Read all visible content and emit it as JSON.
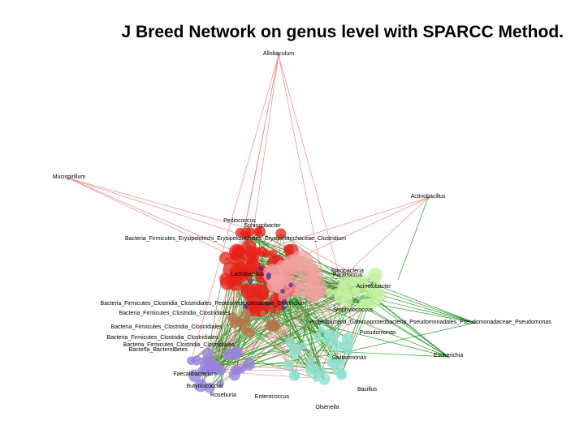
{
  "title": "J Breed Network on genus level with SPARCC Method.",
  "colors": {
    "positive_edge": "#f08a8a",
    "negative_edge": "#2a9a2a",
    "cluster_red": "#e8201a",
    "cluster_pink": "#f4a0a0",
    "cluster_lightgreen": "#c4f0a0",
    "cluster_teal": "#8fe0d0",
    "cluster_purple": "#9a82e0",
    "cluster_brown": "#b8764a"
  },
  "nodes": [
    {
      "label": "Allobaculum"
    },
    {
      "label": "Mucispirillum"
    },
    {
      "label": "Actinobacillus"
    },
    {
      "label": "Pediococcus"
    },
    {
      "label": "Sphingobacter"
    },
    {
      "label": "Bacteria_Firmicutes_Erysipelotrichi_Erysipelotrichales_Erysipelotrichaceae_Clostridium"
    },
    {
      "label": "Nitrobacteria"
    },
    {
      "label": "Paracoccus"
    },
    {
      "label": "Bacteria_Firmicutes_Clostridia_Clostridiales_Peptostreptococcaceae_Clostridium"
    },
    {
      "label": "Bacteria_Firmicutes_Clostridia_Clostridiales"
    },
    {
      "label": "Bacteria_Firmicutes_Clostridia_Clostridiales"
    },
    {
      "label": "Bacteria_Firmicutes_Clostridia_Clostridiales"
    },
    {
      "label": "Bacteria_Firmicutes_Clostridia_Clostridiales"
    },
    {
      "label": "Bacteria_Bacteroidetes"
    },
    {
      "label": "Proteobacteria_Gammaproteobacteria_Pseudomonadales_Pseudomonadaceae_Pseudomonas"
    },
    {
      "label": "Escherichia"
    },
    {
      "label": "Staphylococcus"
    },
    {
      "label": "Sailtarimonas"
    },
    {
      "label": "Enterococcus"
    },
    {
      "label": "Olsenella"
    },
    {
      "label": "Bacillus"
    },
    {
      "label": "Faecalibacterium"
    },
    {
      "label": "Butyricicoccus"
    },
    {
      "label": "Roseburia"
    },
    {
      "label": "Lactobacillus"
    },
    {
      "label": "Acinetobacter"
    },
    {
      "label": "Pseudomonas"
    }
  ]
}
